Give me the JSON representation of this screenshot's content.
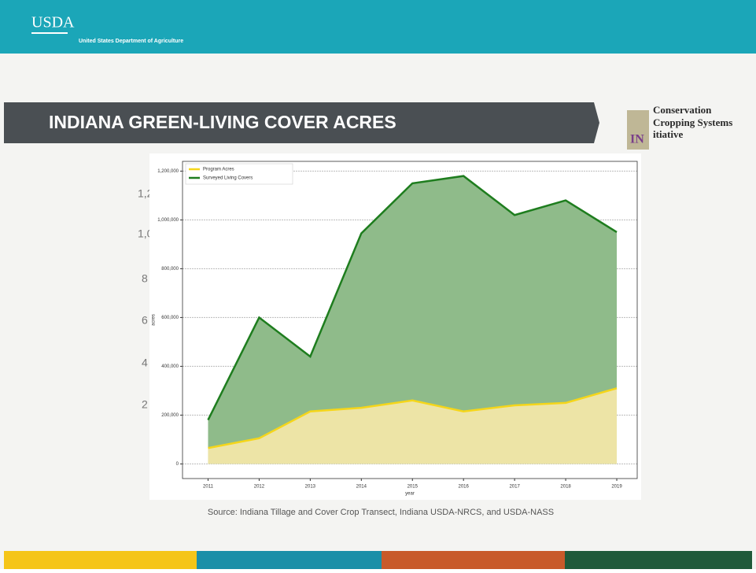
{
  "header": {
    "logo": "USDA",
    "agency": "United States Department of Agriculture"
  },
  "slide_title": "INDIANA GREEN-LIVING COVER ACRES",
  "initiative_logo": {
    "lines": [
      "Conservation",
      "Cropping Systems",
      "itiative"
    ],
    "badge": "IN"
  },
  "background_fragments": [
    "1,2",
    "1,0",
    "8",
    "6",
    "4",
    "2"
  ],
  "source": "Source: Indiana Tillage and Cover Crop Transect, Indiana USDA-NRCS, and USDA-NASS",
  "chart_data": {
    "type": "area",
    "x_label": "year",
    "y_label": "acres",
    "x": [
      2011,
      2012,
      2013,
      2014,
      2015,
      2016,
      2017,
      2018,
      2019
    ],
    "series": [
      {
        "name": "Program Acres",
        "color": "#f5d61a",
        "fill": "#ede4a6",
        "values": [
          65000,
          105000,
          215000,
          230000,
          260000,
          215000,
          240000,
          250000,
          310000
        ]
      },
      {
        "name": "Surveyed Living Covers",
        "color": "#1e7d1e",
        "fill": "#8fbb8a",
        "values": [
          180000,
          600000,
          440000,
          945000,
          1150000,
          1180000,
          1020000,
          1080000,
          950000
        ]
      }
    ],
    "xlim": [
      2010.5,
      2019.4
    ],
    "xticks": [
      2011,
      2012,
      2013,
      2014,
      2015,
      2016,
      2017,
      2018,
      2019
    ],
    "ylim": [
      -60000,
      1240000
    ],
    "yticks": [
      0,
      {
        "value": 200000,
        "label": "200,000"
      },
      {
        "value": 400000,
        "label": "400,000"
      },
      {
        "value": 600000,
        "label": "600,000"
      },
      {
        "value": 800000,
        "label": "800,000"
      },
      {
        "value": 1000000,
        "label": "1,000,000"
      },
      {
        "value": 1200000,
        "label": "1,200,000"
      }
    ],
    "grid": true,
    "legend": "upper-left"
  }
}
